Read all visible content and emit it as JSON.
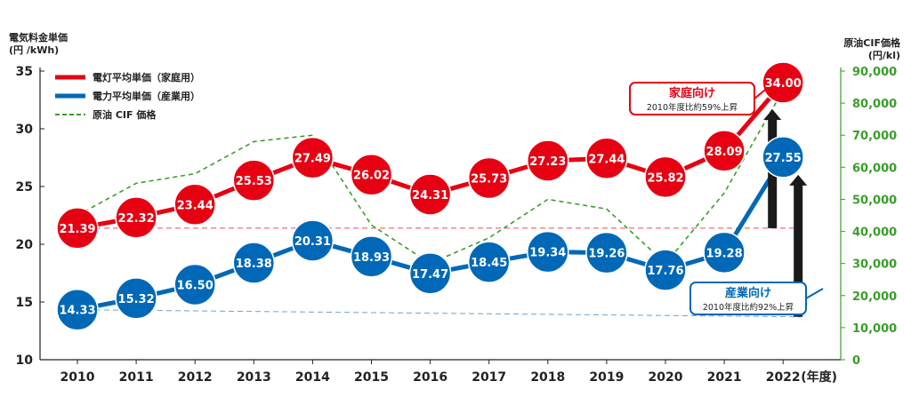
{
  "chart_data": {
    "type": "line",
    "left_axis": {
      "title_lines": [
        "電気料金単価",
        "(円 /kWh)"
      ],
      "ticks": [
        10,
        15,
        20,
        25,
        30,
        35
      ],
      "ylim": [
        10,
        35
      ]
    },
    "right_axis": {
      "title_lines": [
        "原油CIF価格",
        "(円/kl)"
      ],
      "ticks": [
        "0",
        "10,000",
        "20,000",
        "30,000",
        "40,000",
        "50,000",
        "60,000",
        "70,000",
        "80,000",
        "90,000"
      ],
      "ylim": [
        0,
        90000
      ]
    },
    "categories": [
      "2010",
      "2011",
      "2012",
      "2013",
      "2014",
      "2015",
      "2016",
      "2017",
      "2018",
      "2019",
      "2020",
      "2021",
      "2022"
    ],
    "x_unit": "(年度)",
    "series": [
      {
        "name": "電灯平均単価（家庭用）",
        "axis": "left",
        "color": "#e60012",
        "values": [
          21.39,
          22.32,
          23.44,
          25.53,
          27.49,
          26.02,
          24.31,
          25.73,
          27.23,
          27.44,
          25.82,
          28.09,
          34.0
        ],
        "labels": [
          "21.39",
          "22.32",
          "23.44",
          "25.53",
          "27.49",
          "26.02",
          "24.31",
          "25.73",
          "27.23",
          "27.44",
          "25.82",
          "28.09",
          "34.00"
        ]
      },
      {
        "name": "電力平均単価（産業用）",
        "axis": "left",
        "color": "#0068b7",
        "values": [
          14.33,
          15.32,
          16.5,
          18.38,
          20.31,
          18.93,
          17.47,
          18.45,
          19.34,
          19.26,
          17.76,
          19.28,
          27.55
        ],
        "labels": [
          "14.33",
          "15.32",
          "16.50",
          "18.38",
          "20.31",
          "18.93",
          "17.47",
          "18.45",
          "19.34",
          "19.26",
          "17.76",
          "19.28",
          "27.55"
        ]
      },
      {
        "name": "原油 CIF 価格",
        "axis": "right",
        "color": "#3a9d2a",
        "style": "dashed",
        "values": [
          45000,
          55000,
          58000,
          68000,
          70000,
          42000,
          30000,
          38000,
          50000,
          47000,
          30000,
          52000,
          84000
        ]
      }
    ],
    "callouts": [
      {
        "title": "家庭向け",
        "subtitle": "2010年度比約59%上昇",
        "color": "#e60012"
      },
      {
        "title": "産業向け",
        "subtitle": "2010年度比約92%上昇",
        "color": "#0068b7"
      }
    ],
    "grid": false,
    "legend_position": "top-left"
  }
}
